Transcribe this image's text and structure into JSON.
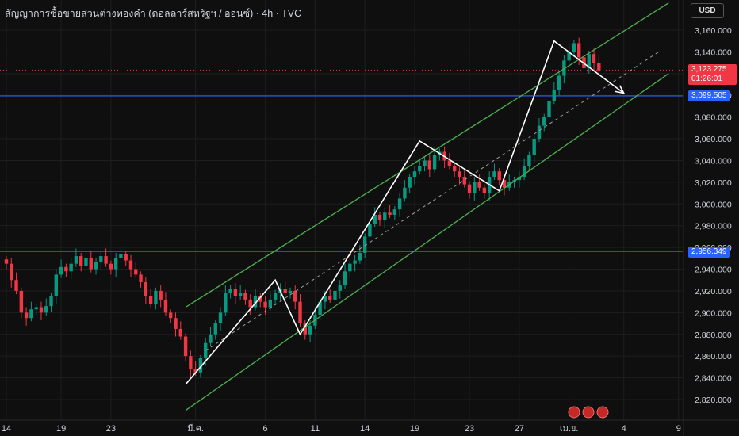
{
  "header": {
    "title": "สัญญาการซื้อขายส่วนต่างทองคำ (ดอลลาร์สหรัฐฯ / ออนซ์) · 4h · TVC",
    "currency": "USD"
  },
  "price_tags": {
    "last_price": "3,123.275",
    "countdown": "01:26:01",
    "level_upper": "3,099.505",
    "level_lower": "2,956.349"
  },
  "colors": {
    "background": "#0f0f0f",
    "grid": "#1e1e1e",
    "up": "#089981",
    "down": "#f23645",
    "channel": "#4caf50",
    "level_line": "#2962ff",
    "drawing": "#ffffff",
    "text": "#d1d4dc"
  },
  "chart_data": {
    "type": "candlestick",
    "instrument": "TVC Gold CFD",
    "timeframe": "4h",
    "y_axis": {
      "min": 2810,
      "max": 3170,
      "ticks": [
        2820,
        2840,
        2860,
        2880,
        2900,
        2920,
        2940,
        2960,
        2980,
        3000,
        3020,
        3040,
        3060,
        3080,
        3100,
        3120,
        3140,
        3160
      ],
      "tick_labels": [
        "2,820.000",
        "2,840.000",
        "2,860.000",
        "2,880.000",
        "2,900.000",
        "2,920.000",
        "2,940.000",
        "2,960.000",
        "2,980.000",
        "3,000.000",
        "3,020.000",
        "3,040.000",
        "3,060.000",
        "3,080.000",
        "3,100.000",
        "3,120.000",
        "3,140.000",
        "3,160.000"
      ]
    },
    "x_axis": {
      "labels": [
        "14",
        "19",
        "23",
        "มี.ค.",
        "6",
        "11",
        "14",
        "19",
        "23",
        "27",
        "เม.ย.",
        "4",
        "9"
      ],
      "label_index": [
        0,
        11,
        21,
        38,
        52,
        62,
        72,
        82,
        93,
        103,
        113,
        124,
        135
      ]
    },
    "x_index_range": [
      0,
      140
    ],
    "horizontal_levels": [
      3099.505,
      2956.349
    ],
    "last_price": 3123.275,
    "close_path": [
      [
        0,
        2945
      ],
      [
        1,
        2930
      ],
      [
        2,
        2920
      ],
      [
        3,
        2900
      ],
      [
        4,
        2895
      ],
      [
        5,
        2903
      ],
      [
        6,
        2905
      ],
      [
        7,
        2900
      ],
      [
        8,
        2906
      ],
      [
        9,
        2915
      ],
      [
        10,
        2935
      ],
      [
        11,
        2942
      ],
      [
        12,
        2938
      ],
      [
        13,
        2945
      ],
      [
        14,
        2952
      ],
      [
        15,
        2943
      ],
      [
        16,
        2950
      ],
      [
        17,
        2940
      ],
      [
        18,
        2947
      ],
      [
        19,
        2952
      ],
      [
        20,
        2945
      ],
      [
        21,
        2940
      ],
      [
        22,
        2950
      ],
      [
        23,
        2954
      ],
      [
        24,
        2948
      ],
      [
        25,
        2940
      ],
      [
        26,
        2935
      ],
      [
        27,
        2928
      ],
      [
        28,
        2915
      ],
      [
        29,
        2908
      ],
      [
        30,
        2920
      ],
      [
        31,
        2912
      ],
      [
        32,
        2900
      ],
      [
        33,
        2895
      ],
      [
        34,
        2885
      ],
      [
        35,
        2878
      ],
      [
        36,
        2860
      ],
      [
        37,
        2848
      ],
      [
        38,
        2845
      ],
      [
        39,
        2858
      ],
      [
        40,
        2872
      ],
      [
        41,
        2880
      ],
      [
        42,
        2890
      ],
      [
        43,
        2900
      ],
      [
        44,
        2918
      ],
      [
        45,
        2922
      ],
      [
        46,
        2915
      ],
      [
        47,
        2918
      ],
      [
        48,
        2912
      ],
      [
        49,
        2905
      ],
      [
        50,
        2915
      ],
      [
        51,
        2910
      ],
      [
        52,
        2905
      ],
      [
        53,
        2912
      ],
      [
        54,
        2918
      ],
      [
        55,
        2922
      ],
      [
        56,
        2918
      ],
      [
        57,
        2920
      ],
      [
        58,
        2910
      ],
      [
        59,
        2890
      ],
      [
        60,
        2880
      ],
      [
        61,
        2888
      ],
      [
        62,
        2898
      ],
      [
        63,
        2910
      ],
      [
        64,
        2915
      ],
      [
        65,
        2912
      ],
      [
        66,
        2920
      ],
      [
        67,
        2925
      ],
      [
        68,
        2938
      ],
      [
        69,
        2945
      ],
      [
        70,
        2948
      ],
      [
        71,
        2955
      ],
      [
        72,
        2970
      ],
      [
        73,
        2982
      ],
      [
        74,
        2990
      ],
      [
        75,
        2985
      ],
      [
        76,
        2992
      ],
      [
        77,
        2990
      ],
      [
        78,
        2995
      ],
      [
        79,
        3005
      ],
      [
        80,
        3015
      ],
      [
        81,
        3025
      ],
      [
        82,
        3030
      ],
      [
        83,
        3035
      ],
      [
        84,
        3040
      ],
      [
        85,
        3032
      ],
      [
        86,
        3045
      ],
      [
        87,
        3048
      ],
      [
        88,
        3040
      ],
      [
        89,
        3035
      ],
      [
        90,
        3030
      ],
      [
        91,
        3025
      ],
      [
        92,
        3018
      ],
      [
        93,
        3010
      ],
      [
        94,
        3020
      ],
      [
        95,
        3015
      ],
      [
        96,
        3010
      ],
      [
        97,
        3025
      ],
      [
        98,
        3030
      ],
      [
        99,
        3022
      ],
      [
        100,
        3015
      ],
      [
        101,
        3020
      ],
      [
        102,
        3022
      ],
      [
        103,
        3025
      ],
      [
        104,
        3035
      ],
      [
        105,
        3045
      ],
      [
        106,
        3060
      ],
      [
        107,
        3072
      ],
      [
        108,
        3080
      ],
      [
        109,
        3095
      ],
      [
        110,
        3105
      ],
      [
        111,
        3118
      ],
      [
        112,
        3132
      ],
      [
        113,
        3140
      ],
      [
        114,
        3148
      ],
      [
        115,
        3135
      ],
      [
        116,
        3125
      ],
      [
        117,
        3138
      ],
      [
        118,
        3130
      ],
      [
        119,
        3123
      ]
    ],
    "channel_lines": [
      {
        "from": [
          36,
          2905
        ],
        "to": [
          133,
          3185
        ]
      },
      {
        "from": [
          36,
          2810
        ],
        "to": [
          133,
          3120
        ]
      },
      {
        "from": [
          40,
          2865
        ],
        "to": [
          131,
          3140
        ]
      }
    ],
    "pattern_zigzag": [
      [
        36,
        2834
      ],
      [
        54,
        2930
      ],
      [
        59,
        2880
      ],
      [
        83,
        3058
      ],
      [
        99,
        3012
      ],
      [
        110,
        3150
      ],
      [
        124,
        3102
      ]
    ]
  }
}
